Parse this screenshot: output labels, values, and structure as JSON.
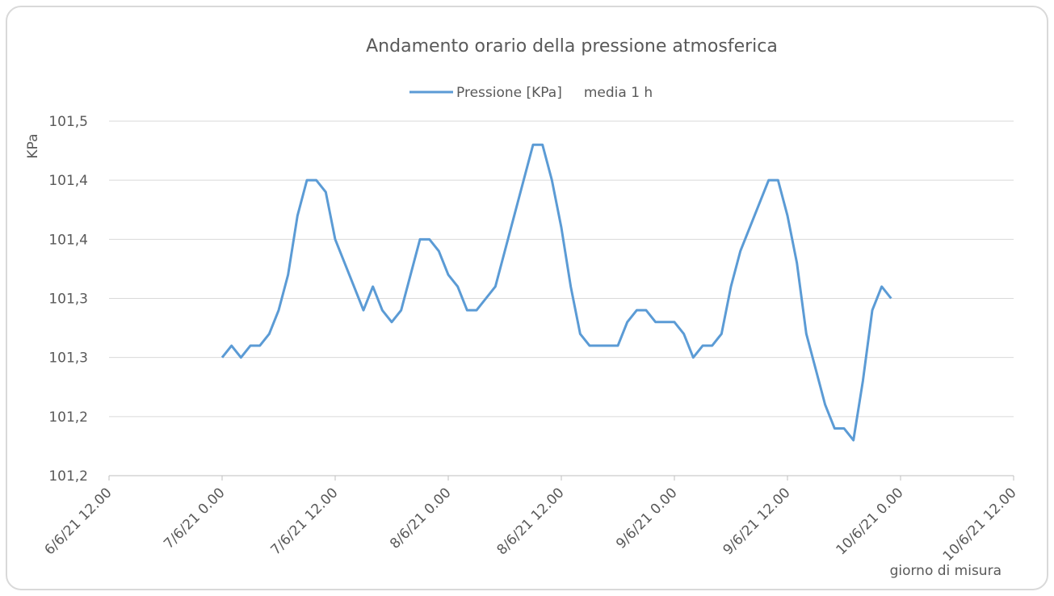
{
  "chart_data": {
    "type": "line",
    "title": "Andamento orario della pressione atmosferica",
    "ylabel": "KPa",
    "xlabel": "giorno di misura",
    "x": [
      "2021-06-07T00:00",
      "2021-06-07T01:00",
      "2021-06-07T02:00",
      "2021-06-07T03:00",
      "2021-06-07T04:00",
      "2021-06-07T05:00",
      "2021-06-07T06:00",
      "2021-06-07T07:00",
      "2021-06-07T08:00",
      "2021-06-07T09:00",
      "2021-06-07T10:00",
      "2021-06-07T11:00",
      "2021-06-07T12:00",
      "2021-06-07T13:00",
      "2021-06-07T14:00",
      "2021-06-07T15:00",
      "2021-06-07T16:00",
      "2021-06-07T17:00",
      "2021-06-07T18:00",
      "2021-06-07T19:00",
      "2021-06-07T20:00",
      "2021-06-07T21:00",
      "2021-06-07T22:00",
      "2021-06-07T23:00",
      "2021-06-08T00:00",
      "2021-06-08T01:00",
      "2021-06-08T02:00",
      "2021-06-08T03:00",
      "2021-06-08T04:00",
      "2021-06-08T05:00",
      "2021-06-08T06:00",
      "2021-06-08T07:00",
      "2021-06-08T08:00",
      "2021-06-08T09:00",
      "2021-06-08T10:00",
      "2021-06-08T11:00",
      "2021-06-08T12:00",
      "2021-06-08T13:00",
      "2021-06-08T14:00",
      "2021-06-08T15:00",
      "2021-06-08T16:00",
      "2021-06-08T17:00",
      "2021-06-08T18:00",
      "2021-06-08T19:00",
      "2021-06-08T20:00",
      "2021-06-08T21:00",
      "2021-06-08T22:00",
      "2021-06-08T23:00",
      "2021-06-09T00:00",
      "2021-06-09T01:00",
      "2021-06-09T02:00",
      "2021-06-09T03:00",
      "2021-06-09T04:00",
      "2021-06-09T05:00",
      "2021-06-09T06:00",
      "2021-06-09T07:00",
      "2021-06-09T08:00",
      "2021-06-09T09:00",
      "2021-06-09T10:00",
      "2021-06-09T11:00",
      "2021-06-09T12:00",
      "2021-06-09T13:00",
      "2021-06-09T14:00",
      "2021-06-09T15:00",
      "2021-06-09T16:00",
      "2021-06-09T17:00",
      "2021-06-09T18:00",
      "2021-06-09T19:00",
      "2021-06-09T20:00",
      "2021-06-09T21:00",
      "2021-06-09T22:00",
      "2021-06-09T23:00"
    ],
    "series": [
      {
        "name": "Pressione [KPa]     media 1 h",
        "color": "#5b9bd5",
        "values": [
          101.3,
          101.31,
          101.3,
          101.31,
          101.31,
          101.32,
          101.34,
          101.37,
          101.42,
          101.45,
          101.45,
          101.44,
          101.4,
          101.38,
          101.36,
          101.34,
          101.36,
          101.34,
          101.33,
          101.34,
          101.37,
          101.4,
          101.4,
          101.39,
          101.37,
          101.36,
          101.34,
          101.34,
          101.35,
          101.36,
          101.39,
          101.42,
          101.45,
          101.48,
          101.48,
          101.45,
          101.41,
          101.36,
          101.32,
          101.31,
          101.31,
          101.31,
          101.31,
          101.33,
          101.34,
          101.34,
          101.33,
          101.33,
          101.33,
          101.32,
          101.3,
          101.31,
          101.31,
          101.32,
          101.36,
          101.39,
          101.41,
          101.43,
          101.45,
          101.45,
          101.42,
          101.38,
          101.32,
          101.29,
          101.26,
          101.24,
          101.24,
          101.23,
          101.28,
          101.34,
          101.36,
          101.35
        ]
      }
    ],
    "xlim": [
      "2021-06-06T12:00",
      "2021-06-10T12:00"
    ],
    "xticks": [
      {
        "value": "2021-06-06T12:00",
        "label": "6/6/21 12.00"
      },
      {
        "value": "2021-06-07T00:00",
        "label": "7/6/21 0.00"
      },
      {
        "value": "2021-06-07T12:00",
        "label": "7/6/21 12.00"
      },
      {
        "value": "2021-06-08T00:00",
        "label": "8/6/21 0.00"
      },
      {
        "value": "2021-06-08T12:00",
        "label": "8/6/21 12.00"
      },
      {
        "value": "2021-06-09T00:00",
        "label": "9/6/21 0.00"
      },
      {
        "value": "2021-06-09T12:00",
        "label": "9/6/21 12.00"
      },
      {
        "value": "2021-06-10T00:00",
        "label": "10/6/21 0.00"
      },
      {
        "value": "2021-06-10T12:00",
        "label": "10/6/21 12.00"
      }
    ],
    "ylim": [
      101.2,
      101.5
    ],
    "yticks": [
      {
        "value": 101.2,
        "label": "101,2"
      },
      {
        "value": 101.25,
        "label": "101,2"
      },
      {
        "value": 101.3,
        "label": "101,3"
      },
      {
        "value": 101.35,
        "label": "101,3"
      },
      {
        "value": 101.4,
        "label": "101,4"
      },
      {
        "value": 101.45,
        "label": "101,4"
      },
      {
        "value": 101.5,
        "label": "101,5"
      }
    ],
    "grid": true,
    "legend": "top"
  }
}
